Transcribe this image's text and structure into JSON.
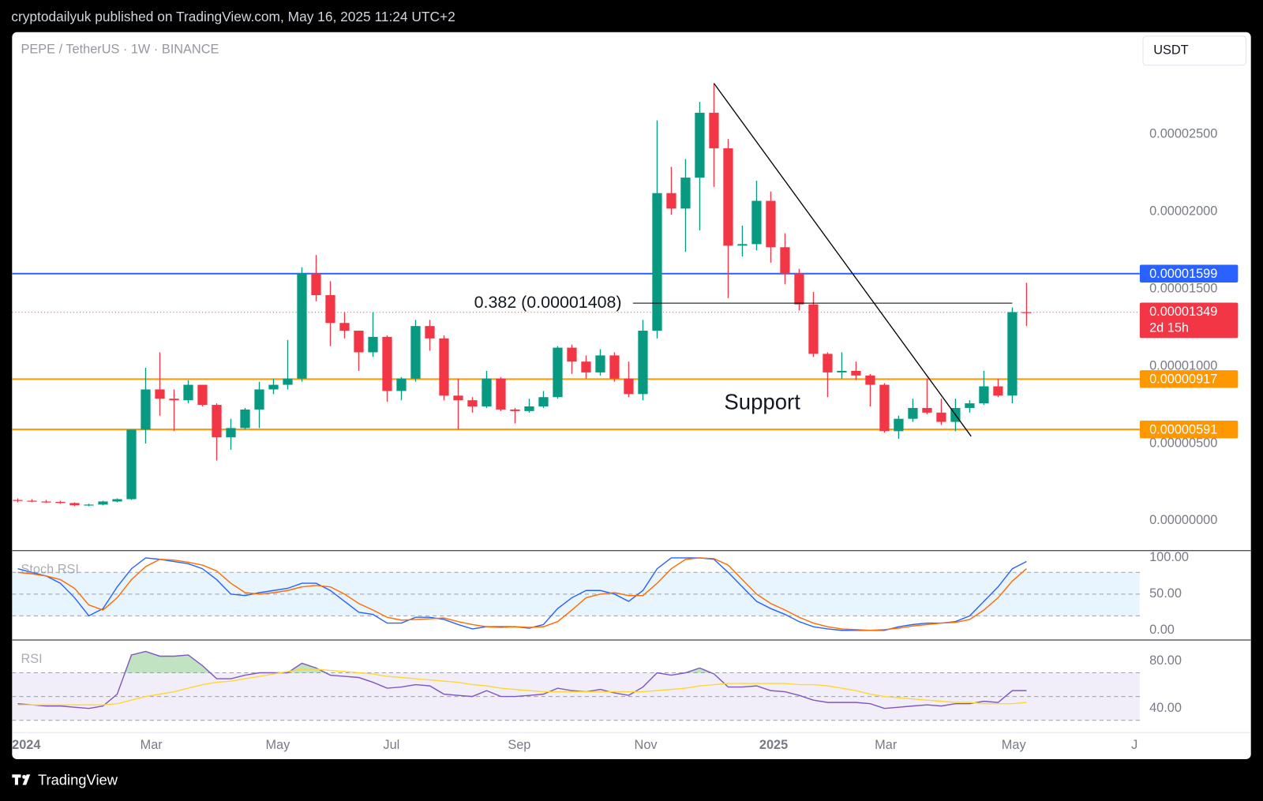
{
  "header": {
    "text": "cryptodailyuk published on TradingView.com, May 16, 2025 11:24 UTC+2"
  },
  "footer": {
    "brand": "TradingView"
  },
  "chart_data": {
    "type": "candlestick",
    "title": "PEPE / TetherUS · 1W · BINANCE",
    "currency": "USDT",
    "up_color": "#089981",
    "down_color": "#f23645",
    "open": [
      1.35e-06,
      1.3e-06,
      1.25e-06,
      1.22e-06,
      1.15e-06,
      1e-06,
      1.05e-06,
      1.25e-06,
      1.4e-06,
      5.9e-06,
      8.5e-06,
      7.9e-06,
      7.8e-06,
      8.8e-06,
      7.5e-06,
      5.4e-06,
      6e-06,
      7.2e-06,
      8.5e-06,
      8.8e-06,
      9.2e-06,
      1.6e-05,
      1.46e-05,
      1.28e-05,
      1.23e-05,
      1.09e-05,
      1.19e-05,
      8.4e-06,
      9.2e-06,
      1.26e-05,
      1.18e-05,
      8.1e-06,
      7.8e-06,
      7.4e-06,
      9.2e-06,
      7.2e-06,
      7.1e-06,
      7.4e-06,
      8e-06,
      1.12e-05,
      1.03e-05,
      9.6e-06,
      1.07e-05,
      9.2e-06,
      8.2e-06,
      1.23e-05,
      2.12e-05,
      2.02e-05,
      2.22e-05,
      2.64e-05,
      2.41e-05,
      1.78e-05,
      1.79e-05,
      2.07e-05,
      1.77e-05,
      1.6e-05,
      1.4e-05,
      1.08e-05,
      9.6e-06,
      9.7e-06,
      9.4e-06,
      8.8e-06,
      5.8e-06,
      6.6e-06,
      7.3e-06,
      7e-06,
      6.4e-06,
      7.3e-06,
      7.6e-06,
      8.7e-06,
      8.1e-06,
      1.35e-05
    ],
    "high": [
      1.45e-06,
      1.4e-06,
      1.35e-06,
      1.3e-06,
      1.2e-06,
      1.1e-06,
      1.3e-06,
      1.45e-06,
      5.9e-06,
      9.9e-06,
      1.09e-05,
      8.5e-06,
      9.1e-06,
      8.8e-06,
      7.6e-06,
      6.6e-06,
      7.3e-06,
      9e-06,
      9.2e-06,
      1.17e-05,
      1.64e-05,
      1.72e-05,
      1.55e-05,
      1.35e-05,
      1.23e-05,
      1.35e-05,
      1.2e-05,
      9.3e-06,
      1.3e-05,
      1.3e-05,
      1.2e-05,
      9.2e-06,
      8e-06,
      9.7e-06,
      9.3e-06,
      7.3e-06,
      7.9e-06,
      8.4e-06,
      1.13e-05,
      1.14e-05,
      1.07e-05,
      1.11e-05,
      1.09e-05,
      1.03e-05,
      1.3e-05,
      2.59e-05,
      2.29e-05,
      2.34e-05,
      2.71e-05,
      2.83e-05,
      2.47e-05,
      1.91e-05,
      2.2e-05,
      2.13e-05,
      1.86e-05,
      1.63e-05,
      1.48e-05,
      1.09e-05,
      1.09e-05,
      1.03e-05,
      9.5e-06,
      8.9e-06,
      6.8e-06,
      7.9e-06,
      9.2e-06,
      7.9e-06,
      7.9e-06,
      7.8e-06,
      9.7e-06,
      9.2e-06,
      1.38e-05,
      1.54e-05
    ],
    "low": [
      1.2e-06,
      1.2e-06,
      1.15e-06,
      1.1e-06,
      9.5e-07,
      9.5e-07,
      1e-06,
      1.2e-06,
      1.35e-06,
      5e-06,
      6.8e-06,
      5.8e-06,
      7.6e-06,
      7.4e-06,
      3.9e-06,
      4.6e-06,
      5.9e-06,
      6e-06,
      8.2e-06,
      8.5e-06,
      9e-06,
      1.42e-05,
      1.13e-05,
      1.18e-05,
      9.7e-06,
      1.06e-05,
      7.7e-06,
      7.8e-06,
      9e-06,
      1.1e-05,
      7.8e-06,
      5.9e-06,
      7e-06,
      7.3e-06,
      7.1e-06,
      6.3e-06,
      7e-06,
      7.3e-06,
      7.9e-06,
      9.5e-06,
      9.2e-06,
      9.4e-06,
      9e-06,
      8e-06,
      7.8e-06,
      1.18e-05,
      1.98e-05,
      1.74e-05,
      1.88e-05,
      2.16e-05,
      1.44e-05,
      1.71e-05,
      1.75e-05,
      1.67e-05,
      1.53e-05,
      1.36e-05,
      1.06e-05,
      8e-06,
      9.2e-06,
      9.1e-06,
      7.4e-06,
      5.7e-06,
      5.3e-06,
      6.4e-06,
      6.9e-06,
      6.2e-06,
      5.8e-06,
      7e-06,
      7.5e-06,
      8e-06,
      7.6e-06,
      1.26e-05
    ],
    "close": [
      1.3e-06,
      1.25e-06,
      1.22e-06,
      1.15e-06,
      1e-06,
      1.05e-06,
      1.25e-06,
      1.4e-06,
      5.9e-06,
      8.5e-06,
      7.9e-06,
      7.8e-06,
      8.8e-06,
      7.5e-06,
      5.4e-06,
      6e-06,
      7.2e-06,
      8.5e-06,
      8.8e-06,
      9.2e-06,
      1.6e-05,
      1.46e-05,
      1.28e-05,
      1.23e-05,
      1.09e-05,
      1.19e-05,
      8.4e-06,
      9.2e-06,
      1.26e-05,
      1.18e-05,
      8.1e-06,
      7.8e-06,
      7.4e-06,
      9.2e-06,
      7.2e-06,
      7.1e-06,
      7.4e-06,
      8e-06,
      1.12e-05,
      1.03e-05,
      9.6e-06,
      1.07e-05,
      9.2e-06,
      8.2e-06,
      1.23e-05,
      2.12e-05,
      2.02e-05,
      2.22e-05,
      2.64e-05,
      2.41e-05,
      1.78e-05,
      1.79e-05,
      2.07e-05,
      1.77e-05,
      1.6e-05,
      1.4e-05,
      1.08e-05,
      9.6e-06,
      9.7e-06,
      9.4e-06,
      8.8e-06,
      5.8e-06,
      6.6e-06,
      7.3e-06,
      7e-06,
      6.4e-06,
      7.3e-06,
      7.6e-06,
      8.7e-06,
      8.1e-06,
      1.35e-05,
      1.349e-05
    ],
    "xlim": [
      -0.4,
      78.97
    ],
    "xticks": [
      {
        "value": 0.6,
        "label": "2024"
      },
      {
        "value": 9.4,
        "label": "Mar"
      },
      {
        "value": 18.3,
        "label": "May"
      },
      {
        "value": 26.3,
        "label": "Jul"
      },
      {
        "value": 35.3,
        "label": "Sep"
      },
      {
        "value": 44.2,
        "label": "Nov"
      },
      {
        "value": 53.2,
        "label": "2025"
      },
      {
        "value": 61.1,
        "label": "Mar"
      },
      {
        "value": 70.1,
        "label": "May"
      },
      {
        "value": 78.6,
        "label": "J"
      }
    ],
    "ylim": [
      -1.93e-06,
      3.161e-05
    ],
    "yticks": [
      {
        "value": 0,
        "label": "0.00000000"
      },
      {
        "value": 5e-06,
        "label": "0.00000500"
      },
      {
        "value": 1e-05,
        "label": "0.00001000"
      },
      {
        "value": 1.5e-05,
        "label": "0.00001500"
      },
      {
        "value": 2e-05,
        "label": "0.00002000"
      },
      {
        "value": 2.5e-05,
        "label": "0.00002500"
      }
    ],
    "levels": [
      {
        "value": 1.599e-05,
        "label": "0.00001599",
        "color": "#2962ff"
      },
      {
        "value": 9.17e-06,
        "label": "0.00000917",
        "color": "#ff9800"
      },
      {
        "value": 5.91e-06,
        "label": "0.00000591",
        "color": "#ff9800"
      }
    ],
    "last_price": {
      "value": 1.349e-05,
      "label": "0.00001349",
      "countdown": "2d 15h",
      "color": "#f23645"
    },
    "fib": {
      "value": 1.408e-05,
      "label": "0.382 (0.00001408)",
      "x": [
        43.3,
        70
      ]
    },
    "trendline": {
      "x": [
        49,
        67.1
      ],
      "y": [
        2.83e-05,
        5.47e-06
      ]
    },
    "annotation": {
      "text": "Support",
      "x": 52.4,
      "y": 7.6e-06
    },
    "stoch_rsi": {
      "title": "Stoch RSI",
      "ylim": [
        -13.3,
        110
      ],
      "yticks": [
        {
          "value": 100,
          "label": "100.00"
        },
        {
          "value": 50,
          "label": "50.00"
        },
        {
          "value": 0,
          "label": "0.00"
        }
      ],
      "bands": [
        20,
        50,
        80
      ],
      "band_color": "#2196f3",
      "series": [
        {
          "color": "#2962ff",
          "values": [
            85,
            80,
            75,
            65,
            45,
            20,
            30,
            60,
            85,
            100,
            98,
            95,
            92,
            85,
            70,
            50,
            48,
            52,
            55,
            58,
            65,
            65,
            55,
            40,
            25,
            22,
            10,
            10,
            18,
            18,
            15,
            8,
            2,
            5,
            5,
            5,
            3,
            8,
            30,
            45,
            55,
            55,
            50,
            40,
            55,
            85,
            100,
            100,
            100,
            98,
            80,
            60,
            40,
            30,
            22,
            12,
            5,
            2,
            0,
            0,
            0,
            0,
            5,
            8,
            10,
            10,
            12,
            20,
            40,
            60,
            85,
            95
          ]
        },
        {
          "color": "#ff6d00",
          "values": [
            80,
            78,
            75,
            70,
            58,
            35,
            28,
            45,
            70,
            88,
            98,
            97,
            94,
            90,
            82,
            65,
            52,
            50,
            52,
            55,
            60,
            62,
            60,
            50,
            37,
            28,
            18,
            14,
            15,
            16,
            17,
            12,
            8,
            5,
            4,
            5,
            4,
            5,
            12,
            28,
            45,
            50,
            52,
            48,
            48,
            65,
            85,
            98,
            100,
            99,
            90,
            70,
            50,
            37,
            28,
            18,
            10,
            5,
            2,
            1,
            0,
            1,
            3,
            6,
            8,
            10,
            11,
            15,
            28,
            45,
            68,
            85
          ]
        }
      ]
    },
    "rsi": {
      "title": "RSI",
      "ylim": [
        19.66,
        97.6
      ],
      "yticks": [
        {
          "value": 80,
          "label": "80.00"
        },
        {
          "value": 40,
          "label": "40.00"
        }
      ],
      "bands": [
        30,
        50,
        70
      ],
      "band_color": "#7e57c2",
      "overbought_color": "#4caf50",
      "series": [
        {
          "color": "#7e57c2",
          "values": [
            44,
            43,
            42,
            42,
            41,
            40,
            42,
            52,
            85,
            88,
            84,
            84,
            85,
            76,
            65,
            65,
            68,
            70,
            70,
            70,
            78,
            74,
            68,
            67,
            66,
            62,
            57,
            58,
            60,
            59,
            52,
            51,
            50,
            55,
            50,
            50,
            51,
            52,
            57,
            55,
            54,
            56,
            53,
            51,
            58,
            70,
            68,
            70,
            74,
            69,
            58,
            58,
            59,
            55,
            54,
            51,
            47,
            45,
            45,
            45,
            44,
            40,
            41,
            42,
            43,
            42,
            44,
            44,
            46,
            45,
            55,
            55
          ]
        },
        {
          "color": "#fdd835",
          "values": [
            43,
            43,
            43,
            43,
            43,
            43,
            43,
            44,
            47,
            50,
            52,
            54,
            57,
            60,
            62,
            63,
            65,
            67,
            69,
            71,
            73,
            73,
            72,
            71,
            70,
            69,
            67,
            66,
            65,
            64,
            63,
            62,
            60,
            59,
            57,
            56,
            55,
            54,
            54,
            54,
            54,
            54,
            54,
            54,
            54,
            55,
            56,
            57,
            59,
            60,
            61,
            61,
            61,
            61,
            61,
            60,
            60,
            59,
            57,
            55,
            52,
            50,
            49,
            48,
            47,
            46,
            45,
            45,
            44,
            44,
            44,
            45
          ]
        }
      ]
    }
  }
}
